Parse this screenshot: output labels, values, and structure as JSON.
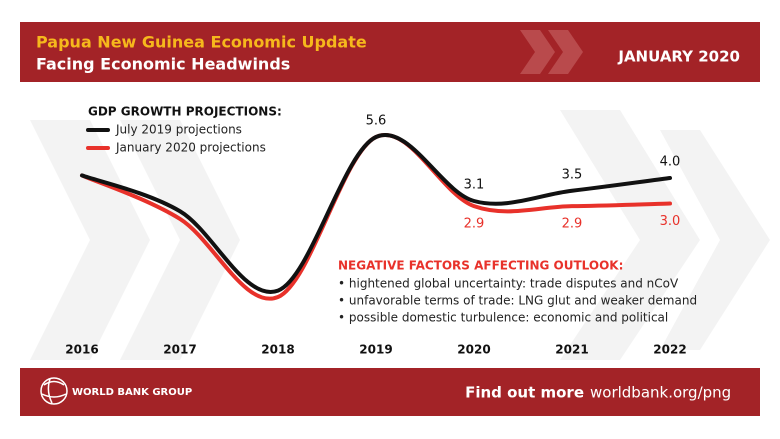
{
  "header": {
    "title": "Papua New Guinea Economic Update",
    "subtitle": "Facing Economic Headwinds",
    "date": "JANUARY 2020"
  },
  "chart_data": {
    "type": "line",
    "legend_title": "GDP GROWTH PROJECTIONS:",
    "x": [
      2016,
      2017,
      2018,
      2019,
      2020,
      2021,
      2022
    ],
    "series": [
      {
        "name": "July 2019 projections",
        "color": "#111111",
        "values": [
          4.1,
          2.7,
          -0.4,
          5.6,
          3.1,
          3.5,
          4.0
        ],
        "value_labels": [
          null,
          null,
          null,
          "5.6",
          "3.1",
          "3.5",
          "4.0"
        ]
      },
      {
        "name": "January 2020 projections",
        "color": "#e8312a",
        "values": [
          4.1,
          2.4,
          -0.65,
          5.6,
          2.9,
          2.9,
          3.0
        ],
        "value_labels": [
          null,
          null,
          null,
          null,
          "2.9",
          "2.9",
          "3.0"
        ]
      }
    ]
  },
  "annotation": {
    "title": "NEGATIVE FACTORS AFFECTING OUTLOOK:",
    "items": [
      "• hightened global uncertainty: trade disputes and nCoV",
      "• unfavorable terms of trade: LNG glut and weaker demand",
      "• possible domestic turbulence: economic and political"
    ]
  },
  "footer": {
    "logo": "WORLD BANK GROUP",
    "cta": "Find out more",
    "url": "worldbank.org/png"
  }
}
